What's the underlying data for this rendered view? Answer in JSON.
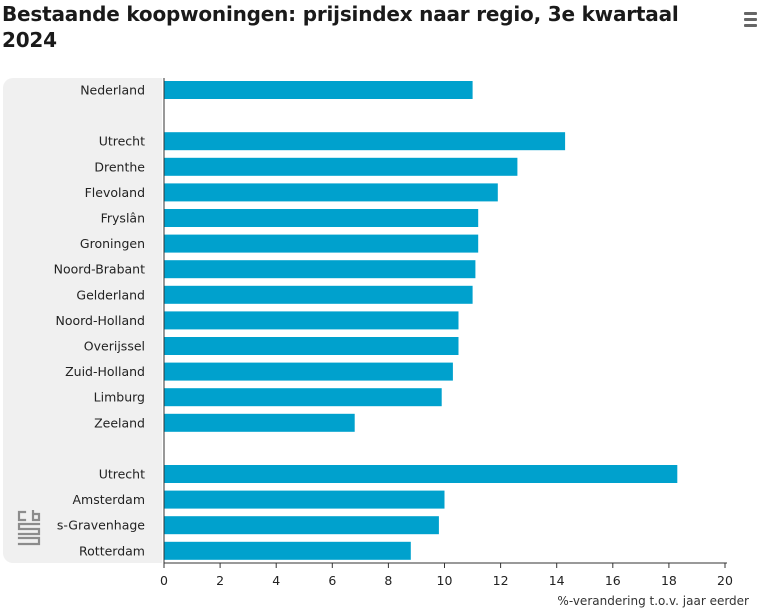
{
  "header": {
    "title": "Bestaande koopwoningen: prijsindex naar regio, 3e kwartaal 2024",
    "menu_icon": "hamburger-menu-icon"
  },
  "branding": {
    "logo_icon": "cbs-logo-icon"
  },
  "colors": {
    "bar": "#00a1cd",
    "label_panel": "#f0f0f0",
    "text": "#222222"
  },
  "chart_data": {
    "type": "bar",
    "orientation": "horizontal",
    "title": "Bestaande koopwoningen: prijsindex naar regio, 3e kwartaal 2024",
    "xlabel": "%-verandering t.o.v. jaar eerder",
    "ylabel": "",
    "xlim": [
      0,
      20
    ],
    "xticks": [
      0,
      2,
      4,
      6,
      8,
      10,
      12,
      14,
      16,
      18,
      20
    ],
    "grid": false,
    "groups": [
      {
        "categories": [
          "Nederland"
        ],
        "values": [
          11.0
        ]
      },
      {
        "categories": [
          "Utrecht",
          "Drenthe",
          "Flevoland",
          "Fryslân",
          "Groningen",
          "Noord-Brabant",
          "Gelderland",
          "Noord-Holland",
          "Overijssel",
          "Zuid-Holland",
          "Limburg",
          "Zeeland"
        ],
        "values": [
          14.3,
          12.6,
          11.9,
          11.2,
          11.2,
          11.1,
          11.0,
          10.5,
          10.5,
          10.3,
          9.9,
          6.8
        ]
      },
      {
        "categories": [
          "Utrecht",
          "Amsterdam",
          "s-Gravenhage",
          "Rotterdam"
        ],
        "values": [
          18.3,
          10.0,
          9.8,
          8.8
        ]
      }
    ]
  }
}
